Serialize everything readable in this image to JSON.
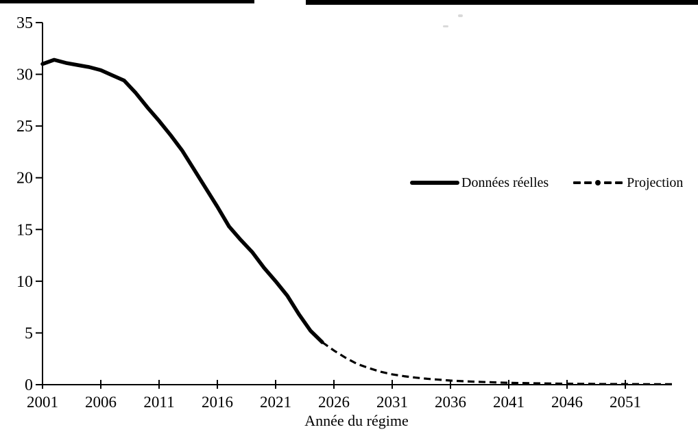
{
  "colors": {
    "line": "#000000",
    "background": "#ffffff",
    "text": "#000000"
  },
  "legend": {
    "items": [
      {
        "label": "Données réelles",
        "swatch": "solid-thick-line"
      },
      {
        "label": "Projection",
        "swatch": "dashed-line-with-dot"
      }
    ]
  },
  "chart_data": {
    "type": "line",
    "title": "",
    "xlabel": "Année du régime",
    "ylabel": "",
    "xlim": [
      2001,
      2056
    ],
    "ylim": [
      0,
      35
    ],
    "xticks": [
      2001,
      2006,
      2011,
      2016,
      2021,
      2026,
      2031,
      2036,
      2041,
      2046,
      2051
    ],
    "yticks": [
      0,
      5,
      10,
      15,
      20,
      25,
      30,
      35
    ],
    "grid": false,
    "legend_position": "middle-right",
    "series": [
      {
        "name": "Données réelles",
        "style": "solid",
        "x": [
          2001,
          2002,
          2003,
          2004,
          2005,
          2006,
          2007,
          2008,
          2009,
          2010,
          2011,
          2012,
          2013,
          2014,
          2015,
          2016,
          2017,
          2018,
          2019,
          2020,
          2021,
          2022,
          2023,
          2024,
          2025
        ],
        "values": [
          31.0,
          31.4,
          31.1,
          30.9,
          30.7,
          30.4,
          29.9,
          29.4,
          28.2,
          26.8,
          25.5,
          24.1,
          22.6,
          20.8,
          19.0,
          17.2,
          15.3,
          14.0,
          12.8,
          11.3,
          10.0,
          8.6,
          6.8,
          5.2,
          4.1
        ]
      },
      {
        "name": "Projection",
        "style": "dashed",
        "x": [
          2025,
          2026,
          2027,
          2028,
          2029,
          2030,
          2031,
          2032,
          2033,
          2034,
          2035,
          2036,
          2037,
          2038,
          2039,
          2040,
          2041,
          2042,
          2043,
          2044,
          2045,
          2046,
          2047,
          2048,
          2049,
          2050,
          2051,
          2052,
          2053,
          2054,
          2055
        ],
        "values": [
          4.1,
          3.3,
          2.6,
          2.0,
          1.6,
          1.25,
          1.0,
          0.82,
          0.68,
          0.57,
          0.48,
          0.4,
          0.34,
          0.29,
          0.25,
          0.21,
          0.18,
          0.16,
          0.14,
          0.12,
          0.1,
          0.09,
          0.08,
          0.07,
          0.06,
          0.06,
          0.05,
          0.05,
          0.04,
          0.04,
          0.04
        ]
      }
    ]
  }
}
